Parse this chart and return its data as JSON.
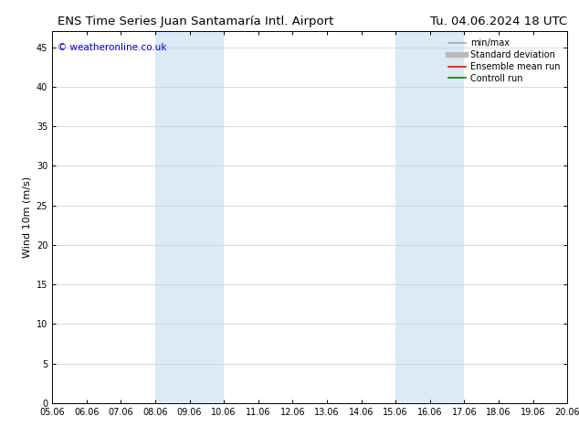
{
  "title_left": "ENS Time Series Juan Santamaría Intl. Airport",
  "title_right": "Tu. 04.06.2024 18 UTC",
  "ylabel": "Wind 10m (m/s)",
  "xlim_min": 5.06,
  "xlim_max": 20.06,
  "ylim_min": 0,
  "ylim_max": 47,
  "xtick_labels": [
    "05.06",
    "06.06",
    "07.06",
    "08.06",
    "09.06",
    "10.06",
    "11.06",
    "12.06",
    "13.06",
    "14.06",
    "15.06",
    "16.06",
    "17.06",
    "18.06",
    "19.06",
    "20.06"
  ],
  "xtick_positions": [
    5.06,
    6.06,
    7.06,
    8.06,
    9.06,
    10.06,
    11.06,
    12.06,
    13.06,
    14.06,
    15.06,
    16.06,
    17.06,
    18.06,
    19.06,
    20.06
  ],
  "ytick_positions": [
    0,
    5,
    10,
    15,
    20,
    25,
    30,
    35,
    40,
    45
  ],
  "shaded_bands": [
    {
      "x_start": 8.06,
      "x_end": 10.06
    },
    {
      "x_start": 15.06,
      "x_end": 17.06
    }
  ],
  "shaded_color": "#daeaf6",
  "background_color": "#ffffff",
  "plot_bg_color": "#ffffff",
  "watermark_text": "© weatheronline.co.uk",
  "watermark_color": "#0000cc",
  "watermark_fontsize": 7.5,
  "legend_items": [
    {
      "label": "min/max",
      "color": "#aaaaaa",
      "lw": 1.2,
      "style": "solid"
    },
    {
      "label": "Standard deviation",
      "color": "#bbbbbb",
      "lw": 4.5,
      "style": "solid"
    },
    {
      "label": "Ensemble mean run",
      "color": "#ff0000",
      "lw": 1.2,
      "style": "solid"
    },
    {
      "label": "Controll run",
      "color": "#008000",
      "lw": 1.2,
      "style": "solid"
    }
  ],
  "title_fontsize": 9.5,
  "ylabel_fontsize": 8,
  "tick_fontsize": 7,
  "legend_fontsize": 7,
  "grid_color": "#cccccc",
  "spine_color": "#000000",
  "tick_color": "#000000"
}
